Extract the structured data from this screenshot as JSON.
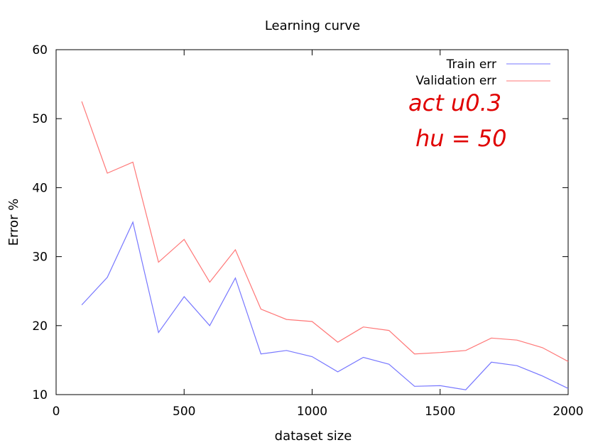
{
  "chart_data": {
    "type": "line",
    "title": "Learning curve",
    "xlabel": "dataset size",
    "ylabel": "Error %",
    "xlim": [
      0,
      2000
    ],
    "ylim": [
      10,
      60
    ],
    "xticks": [
      0,
      500,
      1000,
      1500,
      2000
    ],
    "yticks": [
      10,
      20,
      30,
      40,
      50,
      60
    ],
    "grid": false,
    "legend_position": "top-right",
    "series": [
      {
        "name": "Train err",
        "color": "#7777ff",
        "x": [
          100,
          200,
          300,
          400,
          500,
          600,
          700,
          800,
          900,
          1000,
          1100,
          1200,
          1300,
          1400,
          1500,
          1600,
          1700,
          1800,
          1900,
          2000
        ],
        "y": [
          23.0,
          27.0,
          35.0,
          19.0,
          24.2,
          20.0,
          26.9,
          15.9,
          16.4,
          15.5,
          13.3,
          15.4,
          14.4,
          11.2,
          11.3,
          10.7,
          14.7,
          14.2,
          12.7,
          10.9
        ]
      },
      {
        "name": "Validation err",
        "color": "#ff7777",
        "x": [
          100,
          200,
          300,
          400,
          500,
          600,
          700,
          800,
          900,
          1000,
          1100,
          1200,
          1300,
          1400,
          1500,
          1600,
          1700,
          1800,
          1900,
          2000
        ],
        "y": [
          52.5,
          42.1,
          43.7,
          29.2,
          32.5,
          26.3,
          31.0,
          22.4,
          20.9,
          20.6,
          17.6,
          19.8,
          19.3,
          15.9,
          16.1,
          16.4,
          18.2,
          17.9,
          16.8,
          14.8
        ]
      }
    ],
    "annotations": [
      {
        "text": "act u0.3",
        "color": "#e00000"
      },
      {
        "text": "hu = 50",
        "color": "#e00000"
      }
    ]
  }
}
